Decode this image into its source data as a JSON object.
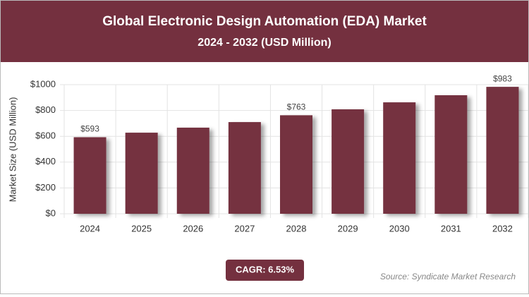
{
  "chart_data": {
    "type": "bar",
    "title": "Global Electronic Design Automation (EDA) Market",
    "subtitle": "2024 - 2032 (USD Million)",
    "y_label": "Market Size (USD Million)",
    "categories": [
      "2024",
      "2025",
      "2026",
      "2027",
      "2028",
      "2029",
      "2030",
      "2031",
      "2032"
    ],
    "values": [
      593,
      628,
      667,
      710,
      763,
      809,
      863,
      918,
      983
    ],
    "value_labels": [
      "$593",
      null,
      null,
      null,
      "$763",
      null,
      null,
      null,
      "$983"
    ],
    "color": "#74303f",
    "ylim": [
      0,
      1000
    ],
    "yticks": [
      {
        "value": 0,
        "label": "$0"
      },
      {
        "value": 200,
        "label": "$200"
      },
      {
        "value": 400,
        "label": "$400"
      },
      {
        "value": 600,
        "label": "$600"
      },
      {
        "value": 800,
        "label": "$800"
      },
      {
        "value": 1000,
        "label": "$1000"
      }
    ],
    "grid": true,
    "annotation": "CAGR: 6.53%",
    "source": "Source: Syndicate Market Research"
  }
}
